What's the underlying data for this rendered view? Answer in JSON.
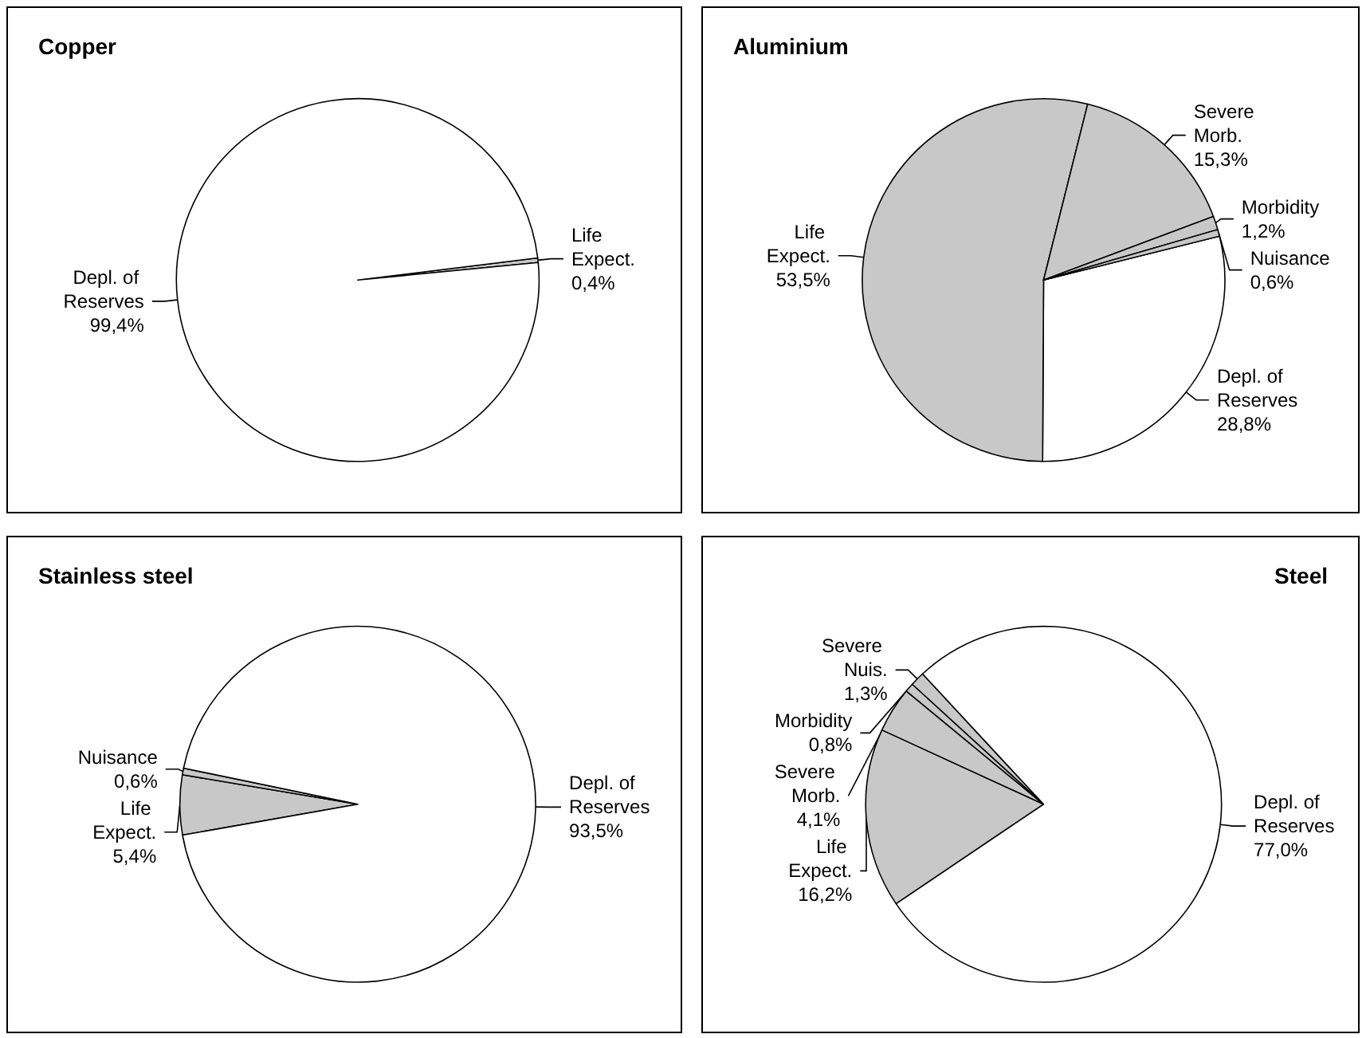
{
  "chart_data": [
    {
      "type": "pie",
      "title": "Copper",
      "categories": [
        "Life Expect.",
        "Depl. of Reserves"
      ],
      "values": [
        0.4,
        99.4
      ],
      "value_labels": [
        "0,4%",
        "99,4%"
      ],
      "colors": [
        "#c8c8c8",
        "#ffffff"
      ]
    },
    {
      "type": "pie",
      "title": "Aluminium",
      "categories": [
        "Depl. of Reserves",
        "Life Expect.",
        "Severe Morb.",
        "Morbidity",
        "Nuisance"
      ],
      "values": [
        28.8,
        53.5,
        15.3,
        1.2,
        0.6
      ],
      "value_labels": [
        "28,8%",
        "53,5%",
        "15,3%",
        "1,2%",
        "0,6%"
      ],
      "colors": [
        "#ffffff",
        "#c8c8c8",
        "#c8c8c8",
        "#c8c8c8",
        "#c8c8c8"
      ]
    },
    {
      "type": "pie",
      "title": "Stainless steel",
      "categories": [
        "Life Expect.",
        "Nuisance",
        "Depl. of Reserves"
      ],
      "values": [
        5.4,
        0.6,
        93.5
      ],
      "value_labels": [
        "5,4%",
        "0,6%",
        "93,5%"
      ],
      "colors": [
        "#c8c8c8",
        "#c8c8c8",
        "#ffffff"
      ]
    },
    {
      "type": "pie",
      "title": "Steel",
      "categories": [
        "Life Expect.",
        "Severe Morb.",
        "Morbidity",
        "Severe Nuis.",
        "Depl. of Reserves"
      ],
      "values": [
        16.2,
        4.1,
        0.8,
        1.3,
        77.0
      ],
      "value_labels": [
        "16,2%",
        "4,1%",
        "0,8%",
        "1,3%",
        "77,0%"
      ],
      "colors": [
        "#c8c8c8",
        "#c8c8c8",
        "#c8c8c8",
        "#c8c8c8",
        "#ffffff"
      ]
    }
  ]
}
